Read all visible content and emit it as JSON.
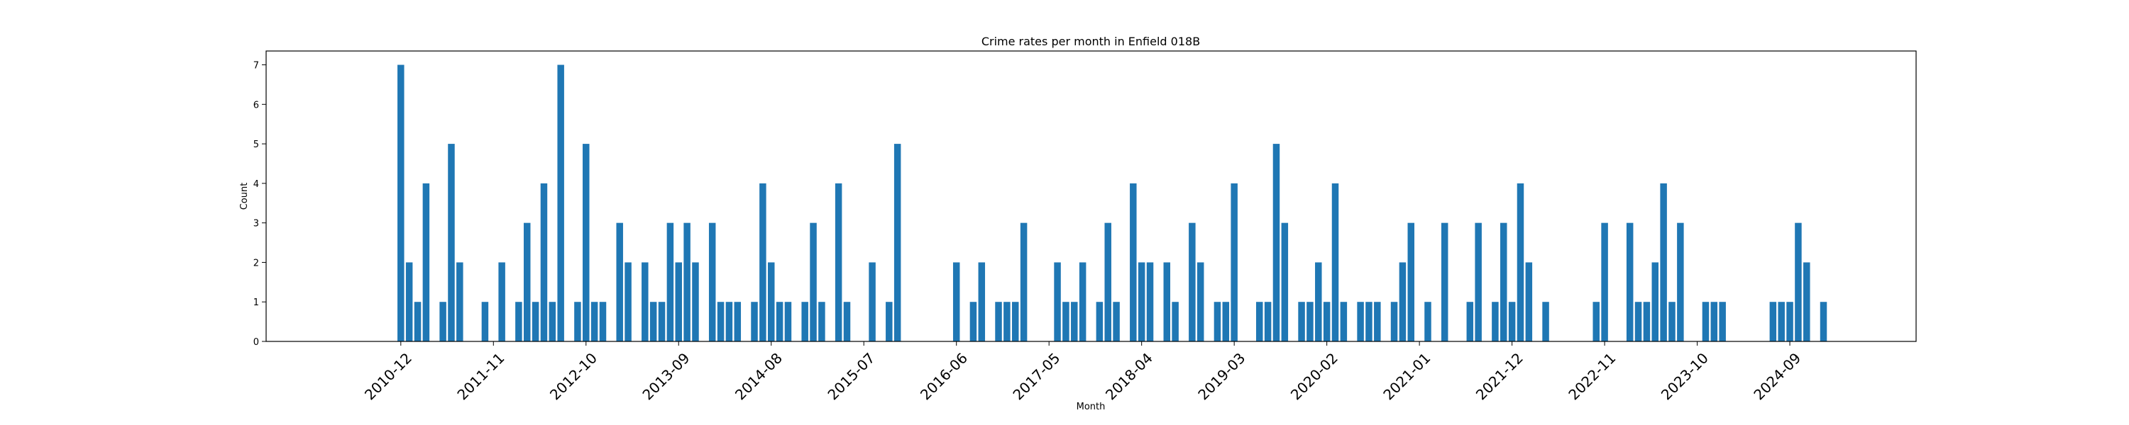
{
  "chart_data": {
    "type": "bar",
    "title": "Crime rates per month in Enfield 018B",
    "xlabel": "Month",
    "ylabel": "Count",
    "ylim": [
      0,
      7.35
    ],
    "yticks": [
      0,
      1,
      2,
      3,
      4,
      5,
      6,
      7
    ],
    "xlim": [
      "2009-08",
      "2025-12"
    ],
    "xticks": [
      "2010-12",
      "2011-11",
      "2012-10",
      "2013-09",
      "2014-08",
      "2015-07",
      "2016-06",
      "2017-05",
      "2018-04",
      "2019-03",
      "2020-02",
      "2021-01",
      "2021-12",
      "2022-11",
      "2023-10",
      "2024-09"
    ],
    "bar_color": "#1f77b4",
    "categories": [
      "2010-12",
      "2011-01",
      "2011-02",
      "2011-03",
      "2011-05",
      "2011-06",
      "2011-07",
      "2011-10",
      "2011-12",
      "2012-02",
      "2012-03",
      "2012-04",
      "2012-05",
      "2012-06",
      "2012-07",
      "2012-09",
      "2012-10",
      "2012-11",
      "2012-12",
      "2013-02",
      "2013-03",
      "2013-05",
      "2013-06",
      "2013-07",
      "2013-08",
      "2013-09",
      "2013-10",
      "2013-11",
      "2014-01",
      "2014-02",
      "2014-03",
      "2014-04",
      "2014-06",
      "2014-07",
      "2014-08",
      "2014-09",
      "2014-10",
      "2014-12",
      "2015-01",
      "2015-02",
      "2015-04",
      "2015-05",
      "2015-08",
      "2015-10",
      "2015-11",
      "2016-06",
      "2016-08",
      "2016-09",
      "2016-11",
      "2016-12",
      "2017-01",
      "2017-02",
      "2017-06",
      "2017-07",
      "2017-08",
      "2017-09",
      "2017-11",
      "2017-12",
      "2018-01",
      "2018-03",
      "2018-04",
      "2018-05",
      "2018-07",
      "2018-08",
      "2018-10",
      "2018-11",
      "2019-01",
      "2019-02",
      "2019-03",
      "2019-06",
      "2019-07",
      "2019-08",
      "2019-09",
      "2019-11",
      "2019-12",
      "2020-01",
      "2020-02",
      "2020-03",
      "2020-04",
      "2020-06",
      "2020-07",
      "2020-08",
      "2020-10",
      "2020-11",
      "2020-12",
      "2021-02",
      "2021-04",
      "2021-07",
      "2021-08",
      "2021-10",
      "2021-11",
      "2021-12",
      "2022-01",
      "2022-02",
      "2022-04",
      "2022-10",
      "2022-11",
      "2023-02",
      "2023-03",
      "2023-04",
      "2023-05",
      "2023-06",
      "2023-07",
      "2023-08",
      "2023-11",
      "2023-12",
      "2024-01",
      "2024-07",
      "2024-08",
      "2024-09",
      "2024-10",
      "2024-11",
      "2025-01"
    ],
    "values": [
      7,
      2,
      1,
      4,
      1,
      5,
      2,
      1,
      2,
      1,
      3,
      1,
      4,
      1,
      7,
      1,
      5,
      1,
      1,
      3,
      2,
      2,
      1,
      1,
      3,
      2,
      3,
      2,
      3,
      1,
      1,
      1,
      1,
      4,
      2,
      1,
      1,
      1,
      3,
      1,
      4,
      1,
      2,
      1,
      5,
      2,
      1,
      2,
      1,
      1,
      1,
      3,
      2,
      1,
      1,
      2,
      1,
      3,
      1,
      4,
      2,
      2,
      2,
      1,
      3,
      2,
      1,
      1,
      4,
      1,
      1,
      5,
      3,
      1,
      1,
      2,
      1,
      4,
      1,
      1,
      1,
      1,
      1,
      2,
      3,
      1,
      3,
      1,
      3,
      1,
      3,
      1,
      4,
      2,
      1,
      1,
      3,
      3,
      1,
      1,
      2,
      4,
      1,
      3,
      1,
      1,
      1,
      1,
      1,
      1,
      3,
      2,
      1
    ]
  }
}
